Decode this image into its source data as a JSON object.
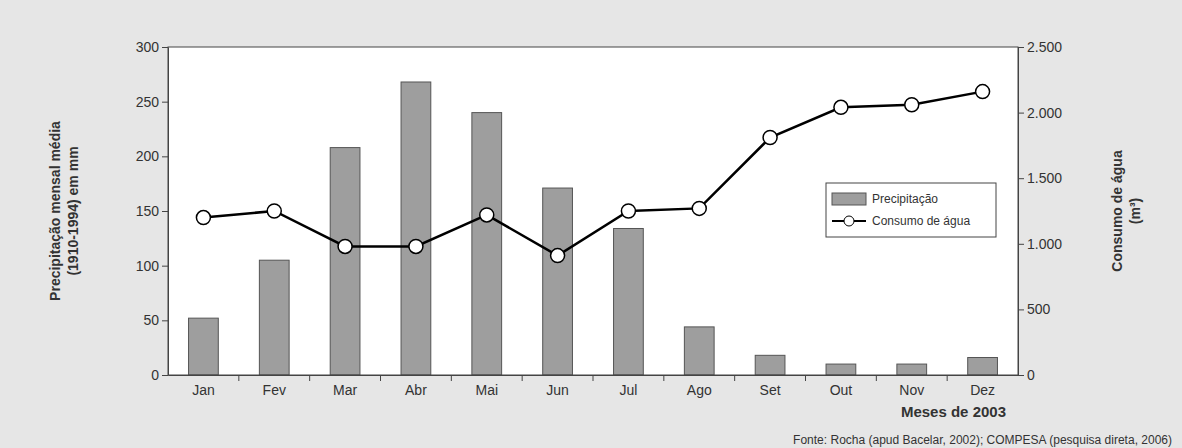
{
  "chart_data": {
    "type": "bar",
    "categories": [
      "Jan",
      "Fev",
      "Mar",
      "Abr",
      "Mai",
      "Jun",
      "Jul",
      "Ago",
      "Set",
      "Out",
      "Nov",
      "Dez"
    ],
    "series": [
      {
        "name": "Precipitação",
        "type": "bar",
        "color": "#9e9e9e",
        "values": [
          52,
          105,
          208,
          268,
          240,
          171,
          134,
          44,
          18,
          10,
          10,
          16
        ]
      },
      {
        "name": "Consumo de água",
        "type": "line",
        "axis": "y2",
        "color": "#000000",
        "marker": "circle",
        "values": [
          1200,
          1250,
          980,
          980,
          1220,
          910,
          1250,
          1270,
          1810,
          2040,
          2060,
          2160
        ]
      }
    ],
    "xlabel": "Meses de 2003",
    "ylabel": [
      "Precipitação mensal média",
      "(1910-1994) em mm"
    ],
    "y2label": [
      "Consumo de água",
      "(m³)"
    ],
    "ylim": [
      0,
      300
    ],
    "yticks": [
      0,
      50,
      100,
      150,
      200,
      250,
      300
    ],
    "y2lim": [
      0,
      2500
    ],
    "y2ticks": [
      0,
      500,
      {
        "value": 1000,
        "label": "1.000"
      },
      {
        "value": 1500,
        "label": "1.500"
      },
      {
        "value": 2000,
        "label": "2.000"
      },
      {
        "value": 2500,
        "label": "2.500"
      }
    ],
    "legend": "right",
    "grid": false,
    "annotations": [
      "Fonte: Rocha (apud Bacelar, 2002); COMPESA (pesquisa direta, 2006)"
    ]
  }
}
